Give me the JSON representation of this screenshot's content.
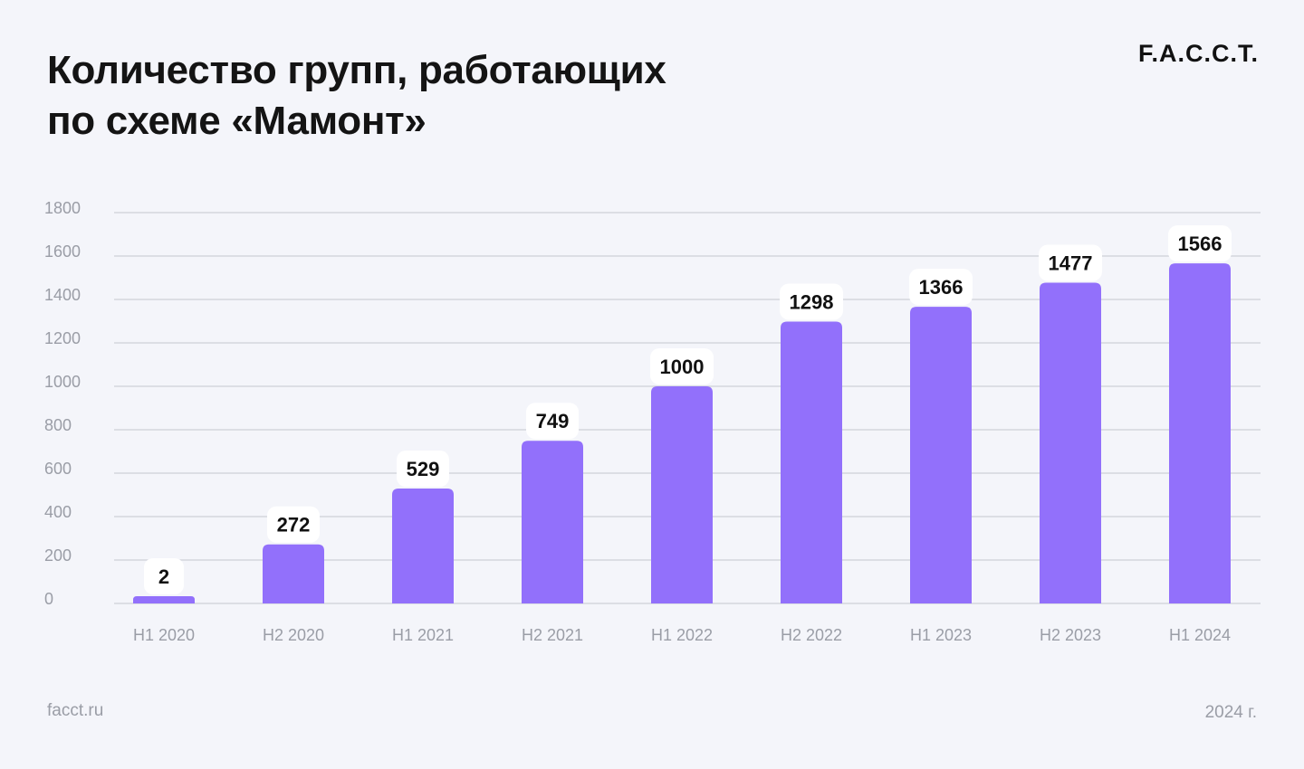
{
  "header": {
    "title_line1": "Количество групп, работающих",
    "title_line2": "по схеме «Мамонт»",
    "logo_text": "F.A.C.C.T."
  },
  "footer": {
    "site": "facct.ru",
    "year": "2024 г."
  },
  "colors": {
    "bar": "#9270fb",
    "background": "#f4f5fa",
    "gridline": "#d4d6dd",
    "label_bg": "#ffffff",
    "axis_text": "#9a9da6"
  },
  "chart_data": {
    "type": "bar",
    "categories": [
      "H1 2020",
      "H2 2020",
      "H1 2021",
      "H2 2021",
      "H1 2022",
      "H2 2022",
      "H1 2023",
      "H2 2023",
      "H1 2024"
    ],
    "values": [
      2,
      272,
      529,
      749,
      1000,
      1298,
      1366,
      1477,
      1566
    ],
    "data_labels": [
      "2",
      "272",
      "529",
      "749",
      "1000",
      "1298",
      "1366",
      "1477",
      "1566"
    ],
    "yticks": [
      0,
      200,
      400,
      600,
      800,
      1000,
      1200,
      1400,
      1600,
      1800
    ],
    "ylim": [
      0,
      1800
    ],
    "grid": true,
    "legend": "none"
  }
}
